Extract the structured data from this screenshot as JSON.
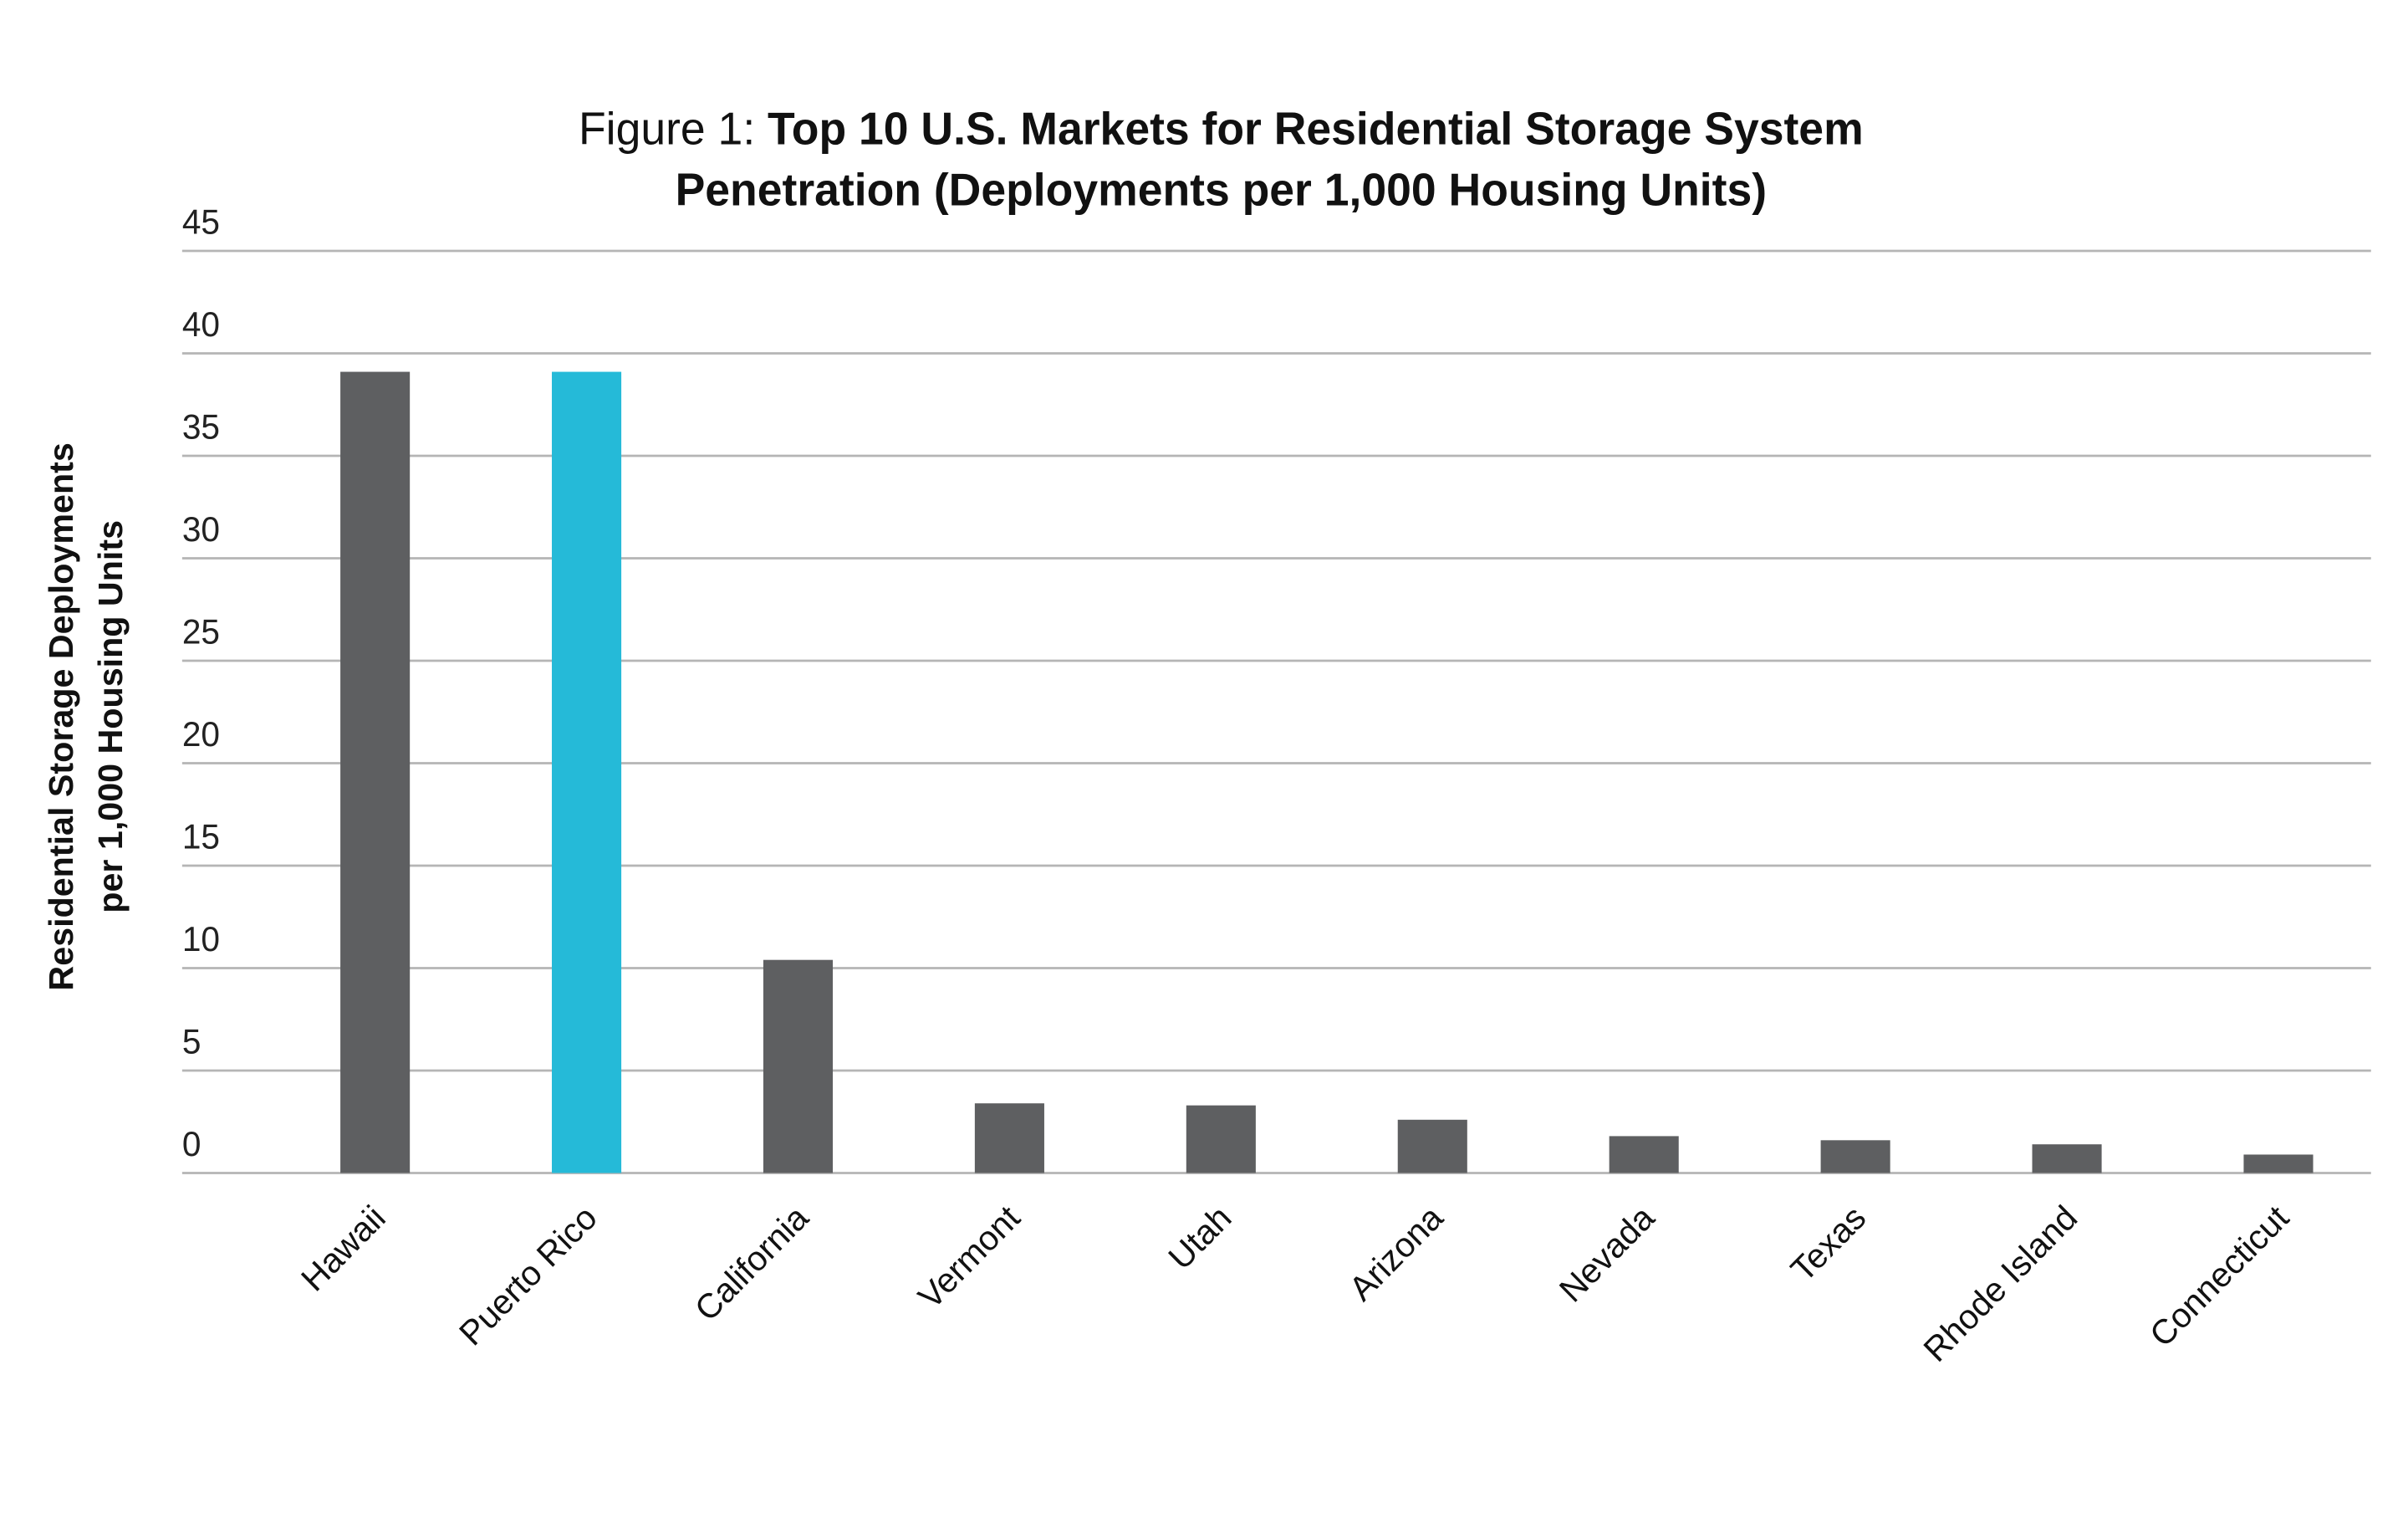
{
  "chart_data": {
    "type": "bar",
    "title_prefix": "Figure 1: ",
    "title_line1": "Top 10 U.S. Markets for Residential Storage System",
    "title_line2": "Penetration (Deployments per 1,000 Housing Units)",
    "xlabel": "",
    "ylabel_line1": "Residential Storage Deployments",
    "ylabel_line2": "per 1,000 Housing Units",
    "ylim": [
      0,
      45
    ],
    "yticks": [
      0,
      5,
      10,
      15,
      20,
      25,
      30,
      35,
      40,
      45
    ],
    "grid": true,
    "categories": [
      "Hawaii",
      "Puerto Rico",
      "California",
      "Vermont",
      "Utah",
      "Arizona",
      "Nevada",
      "Texas",
      "Rhode Island",
      "Connecticut"
    ],
    "values": [
      39.1,
      39.1,
      10.4,
      3.4,
      3.3,
      2.6,
      1.8,
      1.6,
      1.4,
      0.9
    ],
    "colors": {
      "default": "#5e5f61",
      "highlight": "#25bad8",
      "grid": "#b5b5b5"
    },
    "highlight_index": 1
  }
}
